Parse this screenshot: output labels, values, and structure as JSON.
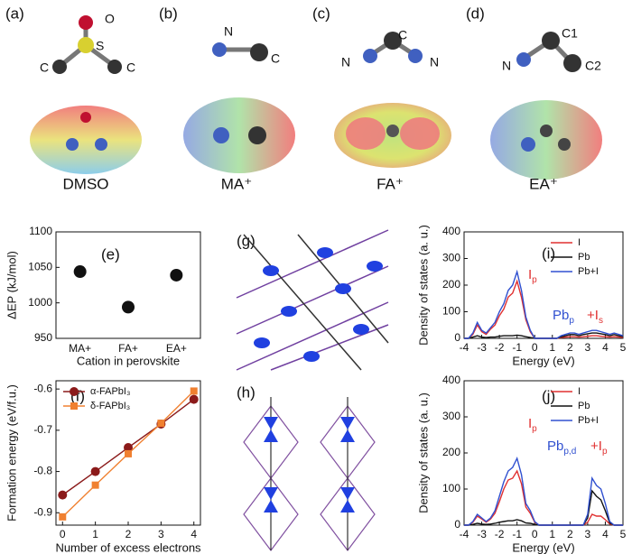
{
  "figure": {
    "panels": [
      "(a)",
      "(b)",
      "(c)",
      "(d)",
      "(g)",
      "(h)"
    ],
    "molecules": [
      {
        "name": "DMSO",
        "atoms": [
          "O",
          "S",
          "C",
          "C"
        ]
      },
      {
        "name": "MA⁺",
        "atoms": [
          "N",
          "C"
        ]
      },
      {
        "name": "FA⁺",
        "atoms": [
          "C",
          "N",
          "N"
        ]
      },
      {
        "name": "EA⁺",
        "atoms": [
          "C1",
          "N",
          "C2"
        ]
      }
    ]
  },
  "chart_data": [
    {
      "type": "scatter",
      "label": "(e)",
      "ylabel": "ΔEP (kJ/mol)",
      "xlabel": "Cation in perovskite",
      "categories": [
        "MA+",
        "FA+",
        "EA+"
      ],
      "values": [
        1044,
        994,
        1039
      ],
      "color": "#111111",
      "ylim": [
        950,
        1100
      ],
      "yticks": [
        950,
        1000,
        1050,
        1100
      ],
      "grid": false
    },
    {
      "type": "line",
      "label": "(f)",
      "ylabel": "Formation energy (eV/f.u.)",
      "xlabel": "Number of excess electrons",
      "x": [
        0,
        1,
        2,
        3,
        4
      ],
      "xlim": [
        -0.2,
        4.2
      ],
      "xticks": [
        0,
        1,
        2,
        3,
        4
      ],
      "ylim": [
        -0.93,
        -0.58
      ],
      "yticks": [
        -0.9,
        -0.8,
        -0.7,
        -0.6
      ],
      "legend": "upper left",
      "grid": false,
      "series": [
        {
          "name": "α-FAPbI₃",
          "color": "#8b1a1a",
          "marker": "circle",
          "values": [
            -0.857,
            -0.8,
            -0.742,
            -0.685,
            -0.625
          ]
        },
        {
          "name": "δ-FAPbI₃",
          "color": "#f08030",
          "marker": "square",
          "values": [
            -0.91,
            -0.833,
            -0.757,
            -0.683,
            -0.605
          ]
        }
      ]
    },
    {
      "type": "line",
      "label": "(i)",
      "ylabel": "Density of states (a. u.)",
      "xlabel": "Energy (eV)",
      "x": [
        -4,
        -3.75,
        -3.5,
        -3.25,
        -3,
        -2.75,
        -2.5,
        -2.25,
        -2,
        -1.75,
        -1.5,
        -1.25,
        -1,
        -0.75,
        -0.5,
        -0.25,
        0,
        0.25,
        0.5,
        0.75,
        1,
        1.25,
        1.5,
        1.75,
        2,
        2.25,
        2.5,
        2.75,
        3,
        3.25,
        3.5,
        3.75,
        4,
        4.25,
        4.5,
        4.75,
        5
      ],
      "xlim": [
        -4,
        5
      ],
      "xticks": [
        -4,
        -3,
        -2,
        -1,
        0,
        1,
        2,
        3,
        4,
        5
      ],
      "ylim": [
        0,
        400
      ],
      "yticks": [
        0,
        100,
        200,
        300,
        400
      ],
      "legend": "upper right",
      "grid": false,
      "series": [
        {
          "name": "I",
          "color": "#e03030",
          "values": [
            0,
            0,
            15,
            50,
            25,
            15,
            35,
            50,
            85,
            110,
            155,
            170,
            215,
            155,
            70,
            25,
            0,
            0,
            0,
            0,
            0,
            0,
            3,
            5,
            6,
            6,
            5,
            6,
            8,
            10,
            10,
            8,
            6,
            5,
            6,
            5,
            3
          ]
        },
        {
          "name": "Pb",
          "color": "#111111",
          "values": [
            0,
            0,
            5,
            10,
            5,
            3,
            5,
            5,
            8,
            10,
            10,
            10,
            12,
            10,
            6,
            3,
            0,
            0,
            0,
            0,
            0,
            0,
            6,
            10,
            14,
            14,
            10,
            14,
            17,
            20,
            20,
            17,
            14,
            10,
            14,
            10,
            7
          ]
        },
        {
          "name": "Pb+I",
          "color": "#3050d0",
          "values": [
            0,
            0,
            20,
            60,
            30,
            20,
            40,
            60,
            100,
            130,
            180,
            200,
            250,
            180,
            80,
            30,
            0,
            0,
            0,
            0,
            0,
            0,
            10,
            15,
            20,
            20,
            15,
            20,
            25,
            30,
            30,
            25,
            20,
            15,
            20,
            15,
            10
          ]
        }
      ],
      "annotations": [
        {
          "text": "I",
          "sub": "p",
          "color": "#e03030"
        },
        {
          "text": "Pb",
          "sub": "p",
          "color": "#3050d0"
        },
        {
          "text": "+I",
          "sub": "s",
          "color": "#e03030"
        }
      ]
    },
    {
      "type": "line",
      "label": "(j)",
      "ylabel": "Density of states (a. u.)",
      "xlabel": "Energy (eV)",
      "x": [
        -4,
        -3.75,
        -3.5,
        -3.25,
        -3,
        -2.75,
        -2.5,
        -2.25,
        -2,
        -1.75,
        -1.5,
        -1.25,
        -1,
        -0.75,
        -0.5,
        -0.25,
        0,
        0.25,
        0.5,
        0.75,
        1,
        1.25,
        1.5,
        1.75,
        2,
        2.25,
        2.5,
        2.75,
        3,
        3.25,
        3.5,
        3.75,
        4,
        4.25,
        4.5,
        4.75,
        5
      ],
      "xlim": [
        -4,
        5
      ],
      "xticks": [
        -4,
        -3,
        -2,
        -1,
        0,
        1,
        2,
        3,
        4,
        5
      ],
      "ylim": [
        0,
        400
      ],
      "yticks": [
        0,
        100,
        200,
        300,
        400
      ],
      "legend": "upper right",
      "grid": false,
      "series": [
        {
          "name": "I",
          "color": "#e03030",
          "values": [
            0,
            0,
            8,
            25,
            17,
            8,
            17,
            33,
            65,
            100,
            125,
            130,
            150,
            115,
            50,
            33,
            8,
            0,
            0,
            0,
            0,
            0,
            0,
            0,
            0,
            0,
            0,
            0,
            8,
            30,
            25,
            25,
            15,
            3,
            0,
            0,
            0
          ]
        },
        {
          "name": "Pb",
          "color": "#111111",
          "values": [
            0,
            0,
            2,
            5,
            3,
            2,
            3,
            5,
            8,
            10,
            12,
            12,
            15,
            12,
            6,
            5,
            2,
            0,
            0,
            0,
            0,
            0,
            0,
            0,
            0,
            0,
            0,
            0,
            20,
            95,
            80,
            70,
            40,
            6,
            0,
            0,
            0
          ]
        },
        {
          "name": "Pb+I",
          "color": "#3050d0",
          "values": [
            0,
            0,
            10,
            30,
            20,
            10,
            20,
            40,
            80,
            120,
            150,
            160,
            185,
            140,
            60,
            40,
            10,
            0,
            0,
            0,
            0,
            0,
            0,
            0,
            0,
            0,
            0,
            0,
            30,
            130,
            110,
            100,
            60,
            10,
            0,
            0,
            0
          ]
        }
      ],
      "annotations": [
        {
          "text": "I",
          "sub": "p",
          "color": "#e03030"
        },
        {
          "text": "Pb",
          "sub": "p,d",
          "color": "#3050d0"
        },
        {
          "text": "+I",
          "sub": "p",
          "color": "#e03030"
        }
      ]
    }
  ]
}
